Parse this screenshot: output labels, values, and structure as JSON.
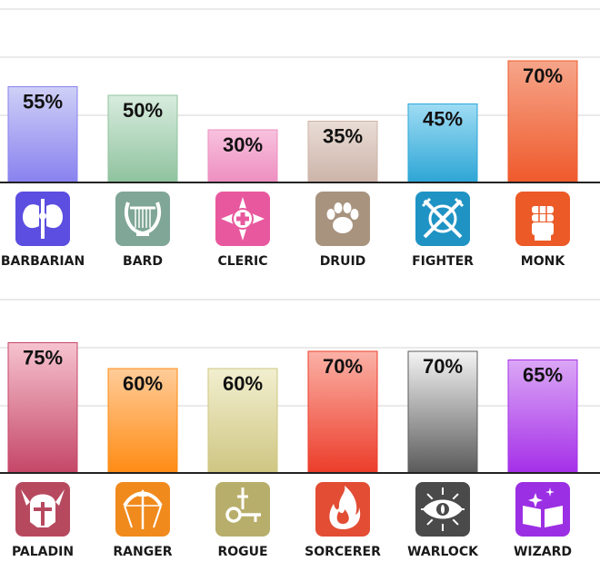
{
  "chart_data": [
    {
      "type": "bar",
      "ylim": [
        0,
        100
      ],
      "grid": true,
      "unit": "%",
      "categories": [
        "BARBARIAN",
        "BARD",
        "CLERIC",
        "DRUID",
        "FIGHTER",
        "MONK"
      ],
      "values": [
        55,
        50,
        30,
        35,
        45,
        70
      ],
      "value_labels": [
        "55%",
        "50%",
        "30%",
        "35%",
        "45%",
        "70%"
      ],
      "icons": [
        "axe-icon",
        "lyre-icon",
        "holy-cross-icon",
        "paw-icon",
        "crossed-swords-shield-icon",
        "fist-icon"
      ],
      "icon_colors": [
        "#5b4ee0",
        "#7fa697",
        "#e8589e",
        "#a8937f",
        "#1f93c4",
        "#ec5a27"
      ],
      "bar_colors_top": [
        "#cfd0f7",
        "#d8ecde",
        "#f7c2de",
        "#e9ddd6",
        "#9fdcf4",
        "#f6a58a"
      ],
      "bar_colors_bottom": [
        "#8982ef",
        "#90c39f",
        "#ee8fc0",
        "#cdb4a9",
        "#2ea6d6",
        "#ef5a2c"
      ]
    },
    {
      "type": "bar",
      "ylim": [
        0,
        100
      ],
      "grid": true,
      "unit": "%",
      "categories": [
        "PALADIN",
        "RANGER",
        "ROGUE",
        "SORCERER",
        "WARLOCK",
        "WIZARD"
      ],
      "values": [
        75,
        60,
        60,
        70,
        70,
        65
      ],
      "value_labels": [
        "75%",
        "60%",
        "60%",
        "70%",
        "70%",
        "65%"
      ],
      "icons": [
        "winged-helm-icon",
        "bow-icon",
        "key-sword-icon",
        "flame-icon",
        "eye-icon",
        "spellbook-icon"
      ],
      "icon_colors": [
        "#b7495f",
        "#f08a1c",
        "#b8ae6b",
        "#e24d34",
        "#4a4a4a",
        "#9b2fe3"
      ],
      "bar_colors_top": [
        "#f6c3cf",
        "#ffcc99",
        "#f2efd0",
        "#fbb1a6",
        "#f4f4f4",
        "#dba7f6"
      ],
      "bar_colors_bottom": [
        "#c54768",
        "#ff8c15",
        "#cfc682",
        "#ec3d2b",
        "#5b5b5b",
        "#a530e8"
      ]
    }
  ]
}
